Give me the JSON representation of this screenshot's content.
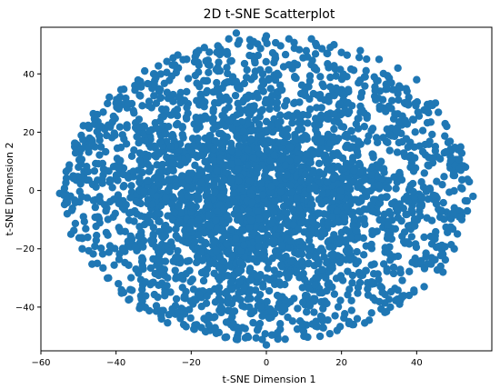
{
  "chart_data": {
    "type": "scatter",
    "title": "2D t-SNE Scatterplot",
    "xlabel": "t-SNE Dimension 1",
    "ylabel": "t-SNE Dimension 2",
    "xlim": [
      -60,
      60
    ],
    "ylim": [
      -55,
      56
    ],
    "xticks": [
      -60,
      -40,
      -20,
      0,
      20,
      40
    ],
    "yticks": [
      -40,
      -20,
      0,
      20,
      40
    ],
    "grid": false,
    "legend": "none",
    "marker_color": "#1f77b4",
    "point_count": 3200,
    "distribution": "roughly elliptical cloud centered near (0, 0); x spans about -55 to 55, y spans about -53 to 54",
    "sample_points": [
      [
        -55,
        -1
      ],
      [
        -53,
        -8
      ],
      [
        -52,
        -15
      ],
      [
        -51,
        15
      ],
      [
        -50,
        8
      ],
      [
        -49,
        -20
      ],
      [
        -47,
        17
      ],
      [
        -45,
        -25
      ],
      [
        -43,
        21
      ],
      [
        -42,
        -30
      ],
      [
        -40,
        30
      ],
      [
        -38,
        -35
      ],
      [
        -35,
        36
      ],
      [
        -33,
        -38
      ],
      [
        -30,
        40
      ],
      [
        -28,
        -43
      ],
      [
        -25,
        43
      ],
      [
        -22,
        -46
      ],
      [
        -18,
        48
      ],
      [
        -15,
        -48
      ],
      [
        -10,
        52
      ],
      [
        -5,
        -50
      ],
      [
        -8,
        54
      ],
      [
        0,
        -53
      ],
      [
        0,
        53
      ],
      [
        5,
        -51
      ],
      [
        6,
        52
      ],
      [
        10,
        -50
      ],
      [
        12,
        52
      ],
      [
        15,
        -47
      ],
      [
        18,
        50
      ],
      [
        22,
        -45
      ],
      [
        25,
        48
      ],
      [
        28,
        -42
      ],
      [
        30,
        45
      ],
      [
        33,
        -40
      ],
      [
        35,
        42
      ],
      [
        38,
        -36
      ],
      [
        40,
        38
      ],
      [
        42,
        -33
      ],
      [
        45,
        30
      ],
      [
        47,
        -28
      ],
      [
        48,
        22
      ],
      [
        50,
        -20
      ],
      [
        51,
        14
      ],
      [
        52,
        -10
      ],
      [
        53,
        8
      ],
      [
        54,
        3
      ],
      [
        55,
        -2
      ],
      [
        -10,
        -10
      ],
      [
        0,
        -8
      ],
      [
        -5,
        5
      ],
      [
        10,
        8
      ],
      [
        -20,
        -5
      ],
      [
        20,
        -3
      ],
      [
        -15,
        15
      ],
      [
        15,
        15
      ],
      [
        -12,
        -25
      ],
      [
        12,
        -22
      ],
      [
        0,
        20
      ],
      [
        0,
        -30
      ]
    ]
  }
}
